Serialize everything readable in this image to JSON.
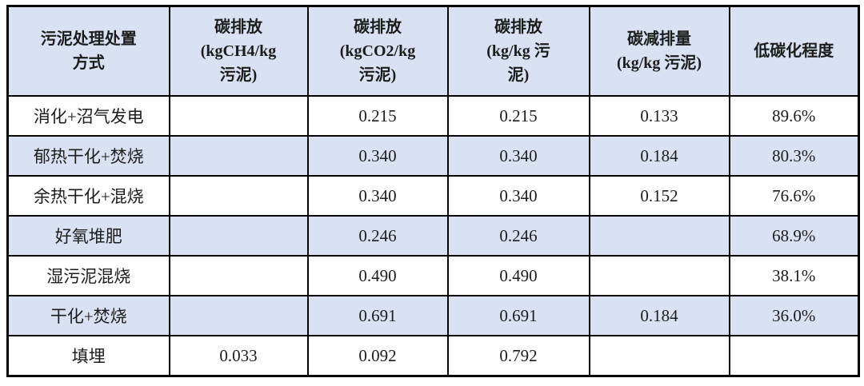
{
  "colors": {
    "header_bg": "#d9e2f3",
    "alt_row_bg": "#d9e2f3",
    "border": "#000000",
    "text": "#1c1c1c"
  },
  "table": {
    "headers": [
      {
        "key": "method",
        "lines": [
          "污泥处理处置",
          "方式"
        ]
      },
      {
        "key": "ch4",
        "lines": [
          "碳排放",
          "(kgCH4/kg",
          "污泥)"
        ]
      },
      {
        "key": "co2",
        "lines": [
          "碳排放",
          "(kgCO2/kg",
          "污泥)"
        ]
      },
      {
        "key": "total",
        "lines": [
          "碳排放",
          "(kg/kg 污",
          "泥)"
        ]
      },
      {
        "key": "reduction",
        "lines": [
          "碳减排量",
          "(kg/kg 污泥)"
        ]
      },
      {
        "key": "degree",
        "lines": [
          "低碳化程度"
        ]
      }
    ],
    "rows": [
      {
        "method": "消化+沼气发电",
        "ch4": "",
        "co2": "0.215",
        "total": "0.215",
        "reduction": "0.133",
        "degree": "89.6%"
      },
      {
        "method": "郁热干化+焚烧",
        "ch4": "",
        "co2": "0.340",
        "total": "0.340",
        "reduction": "0.184",
        "degree": "80.3%"
      },
      {
        "method": "余热干化+混烧",
        "ch4": "",
        "co2": "0.340",
        "total": "0.340",
        "reduction": "0.152",
        "degree": "76.6%"
      },
      {
        "method": "好氧堆肥",
        "ch4": "",
        "co2": "0.246",
        "total": "0.246",
        "reduction": "",
        "degree": "68.9%"
      },
      {
        "method": "湿污泥混烧",
        "ch4": "",
        "co2": "0.490",
        "total": "0.490",
        "reduction": "",
        "degree": "38.1%"
      },
      {
        "method": "干化+焚烧",
        "ch4": "",
        "co2": "0.691",
        "total": "0.691",
        "reduction": "0.184",
        "degree": "36.0%"
      },
      {
        "method": "填埋",
        "ch4": "0.033",
        "co2": "0.092",
        "total": "0.792",
        "reduction": "",
        "degree": ""
      }
    ]
  }
}
